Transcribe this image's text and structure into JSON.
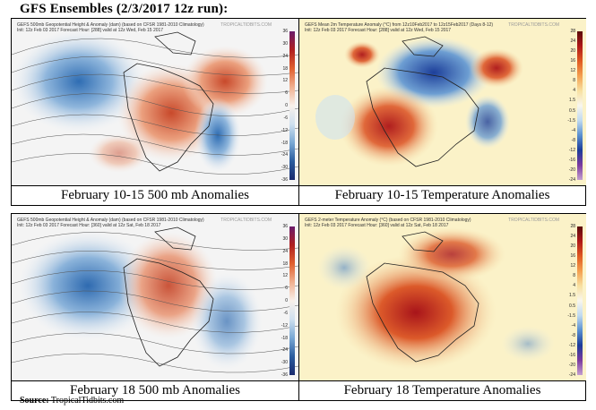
{
  "title": "GFS Ensembles (2/3/2017 12z run):",
  "panels": [
    {
      "caption": "February 10-15 500 mb Anomalies",
      "header": "GEFS 500mb Geopotential Height & Anomaly (dam) (based on CFSR 1981-2010 Climatology)",
      "subheader": "Init: 12z Feb 03 2017  Forecast Hour: [288]  valid at 12z Wed, Feb 15 2017",
      "brand": "TROPICALTIDBITS.COM"
    },
    {
      "caption": "February 10-15 Temperature Anomalies",
      "header": "GEFS Mean 2m Temperature Anomaly (°C) from 12z10Feb2017 to 12z15Feb2017 (Days 8-12)",
      "subheader": "Init: 12z Feb 03 2017  Forecast Hour: [288]  valid at 12z Wed, Feb 15 2017",
      "brand": "TROPICALTIDBITS.COM"
    },
    {
      "caption": "February 18 500 mb Anomalies",
      "header": "GEFS 500mb Geopotential Height & Anomaly (dam) (based on CFSR 1981-2010 Climatology)",
      "subheader": "Init: 12z Feb 03 2017  Forecast Hour: [360]  valid at 12z Sat, Feb 18 2017",
      "brand": "TROPICALTIDBITS.COM"
    },
    {
      "caption": "February 18 Temperature Anomalies",
      "header": "GEFS 2-meter Temperature Anomaly (°C) (based on CFSR 1981-2010 Climatology)",
      "subheader": "Init: 12z Feb 03 2017  Forecast Hour: [360]  valid at 12z Sat, Feb 18 2017",
      "brand": "TROPICALTIDBITS.COM"
    }
  ],
  "legend_height": [
    "36",
    "30",
    "24",
    "18",
    "12",
    "6",
    "0",
    "-6",
    "-12",
    "-18",
    "-24",
    "-30",
    "-36"
  ],
  "legend_temp": [
    "28",
    "24",
    "20",
    "16",
    "12",
    "8",
    "4",
    "1.5",
    "0.5",
    "-1.5",
    "-4",
    "-8",
    "-12",
    "-16",
    "-20",
    "-24"
  ],
  "source_label": "Source:",
  "source_value": "TropicalTidbits.com"
}
